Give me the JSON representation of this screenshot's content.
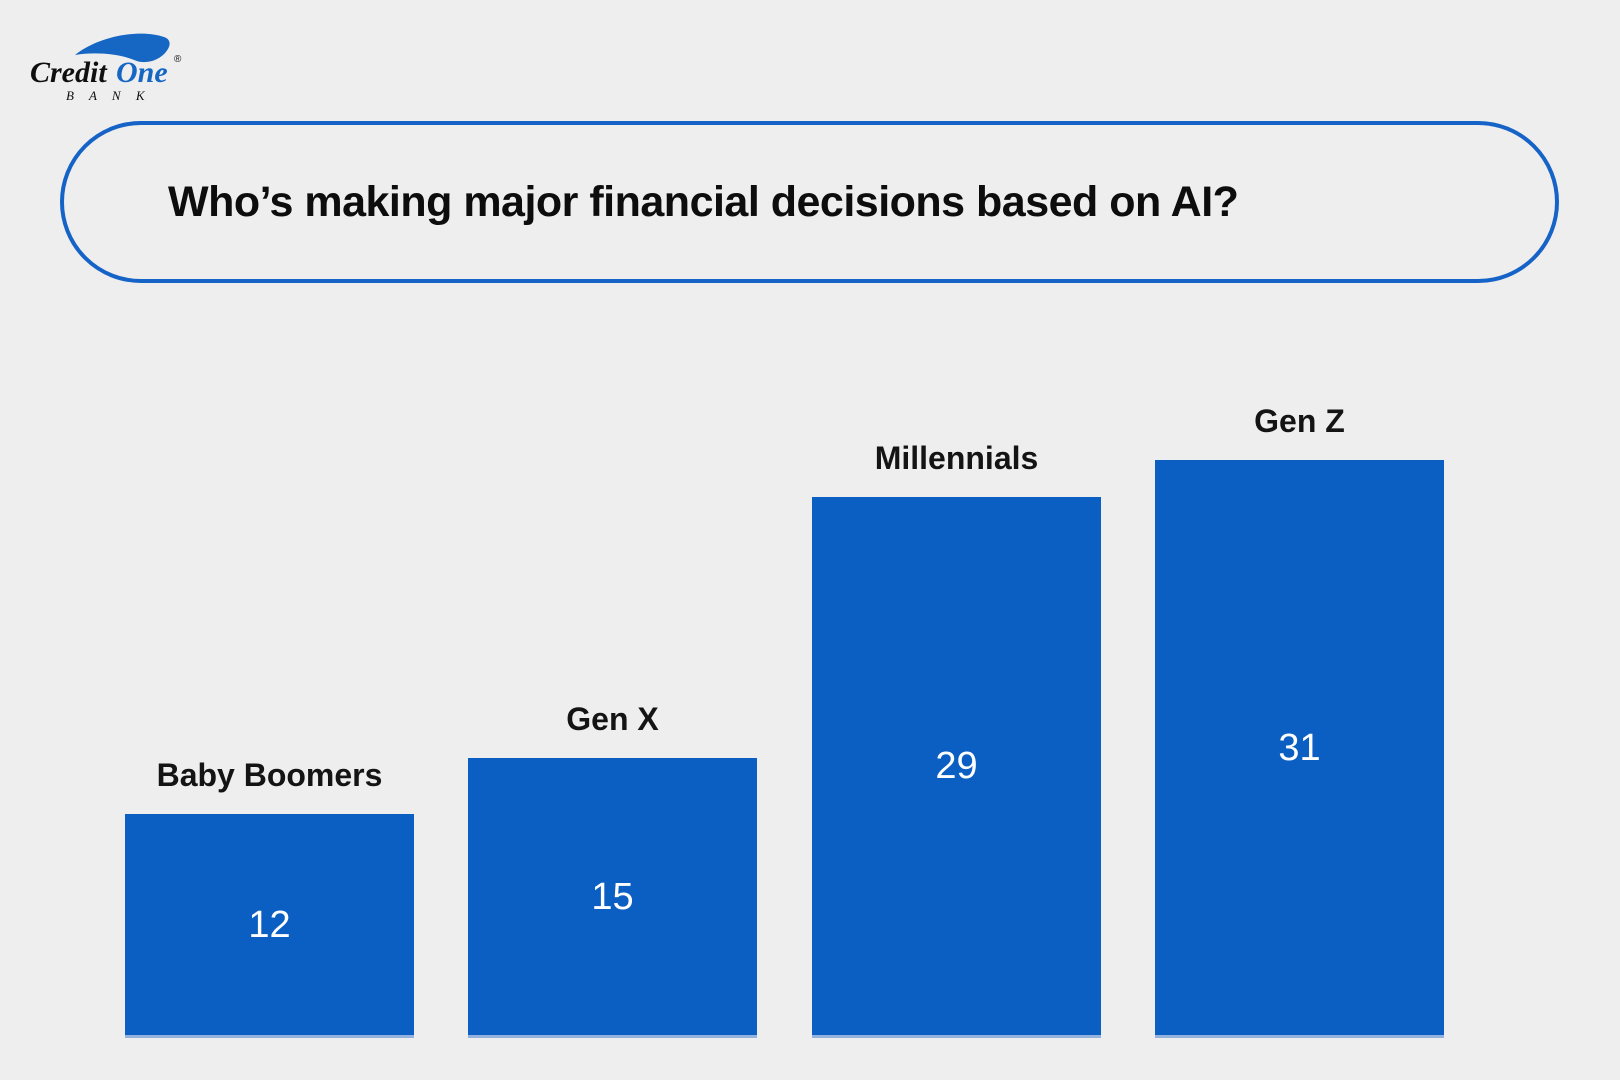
{
  "page": {
    "background_color": "#eeeeee"
  },
  "logo": {
    "brand_credit": "Credit",
    "brand_one": "One",
    "registered_mark": "®",
    "subtext": "B A N K",
    "blue": "#1666c4",
    "black": "#0f0f0f"
  },
  "title": {
    "text": "Who’s making major financial decisions based on AI?",
    "border_color": "#1663c7"
  },
  "chart_data": {
    "type": "bar",
    "categories": [
      "Baby Boomers",
      "Gen X",
      "Millennials",
      "Gen Z"
    ],
    "values": [
      12,
      15,
      29,
      31
    ],
    "title": "Who’s making major financial decisions based on AI?",
    "xlabel": "",
    "ylabel": "",
    "ylim": [
      0,
      33
    ],
    "grid": false,
    "legend": false,
    "orientation": "vertical",
    "bar_color": "#0b5ec2",
    "bar_bottom_edge_color": "#93b3de",
    "value_label_color": "#ffffff",
    "value_label_position": "inside-center",
    "category_label_color": "#141414",
    "category_label_position": "above-bar"
  }
}
